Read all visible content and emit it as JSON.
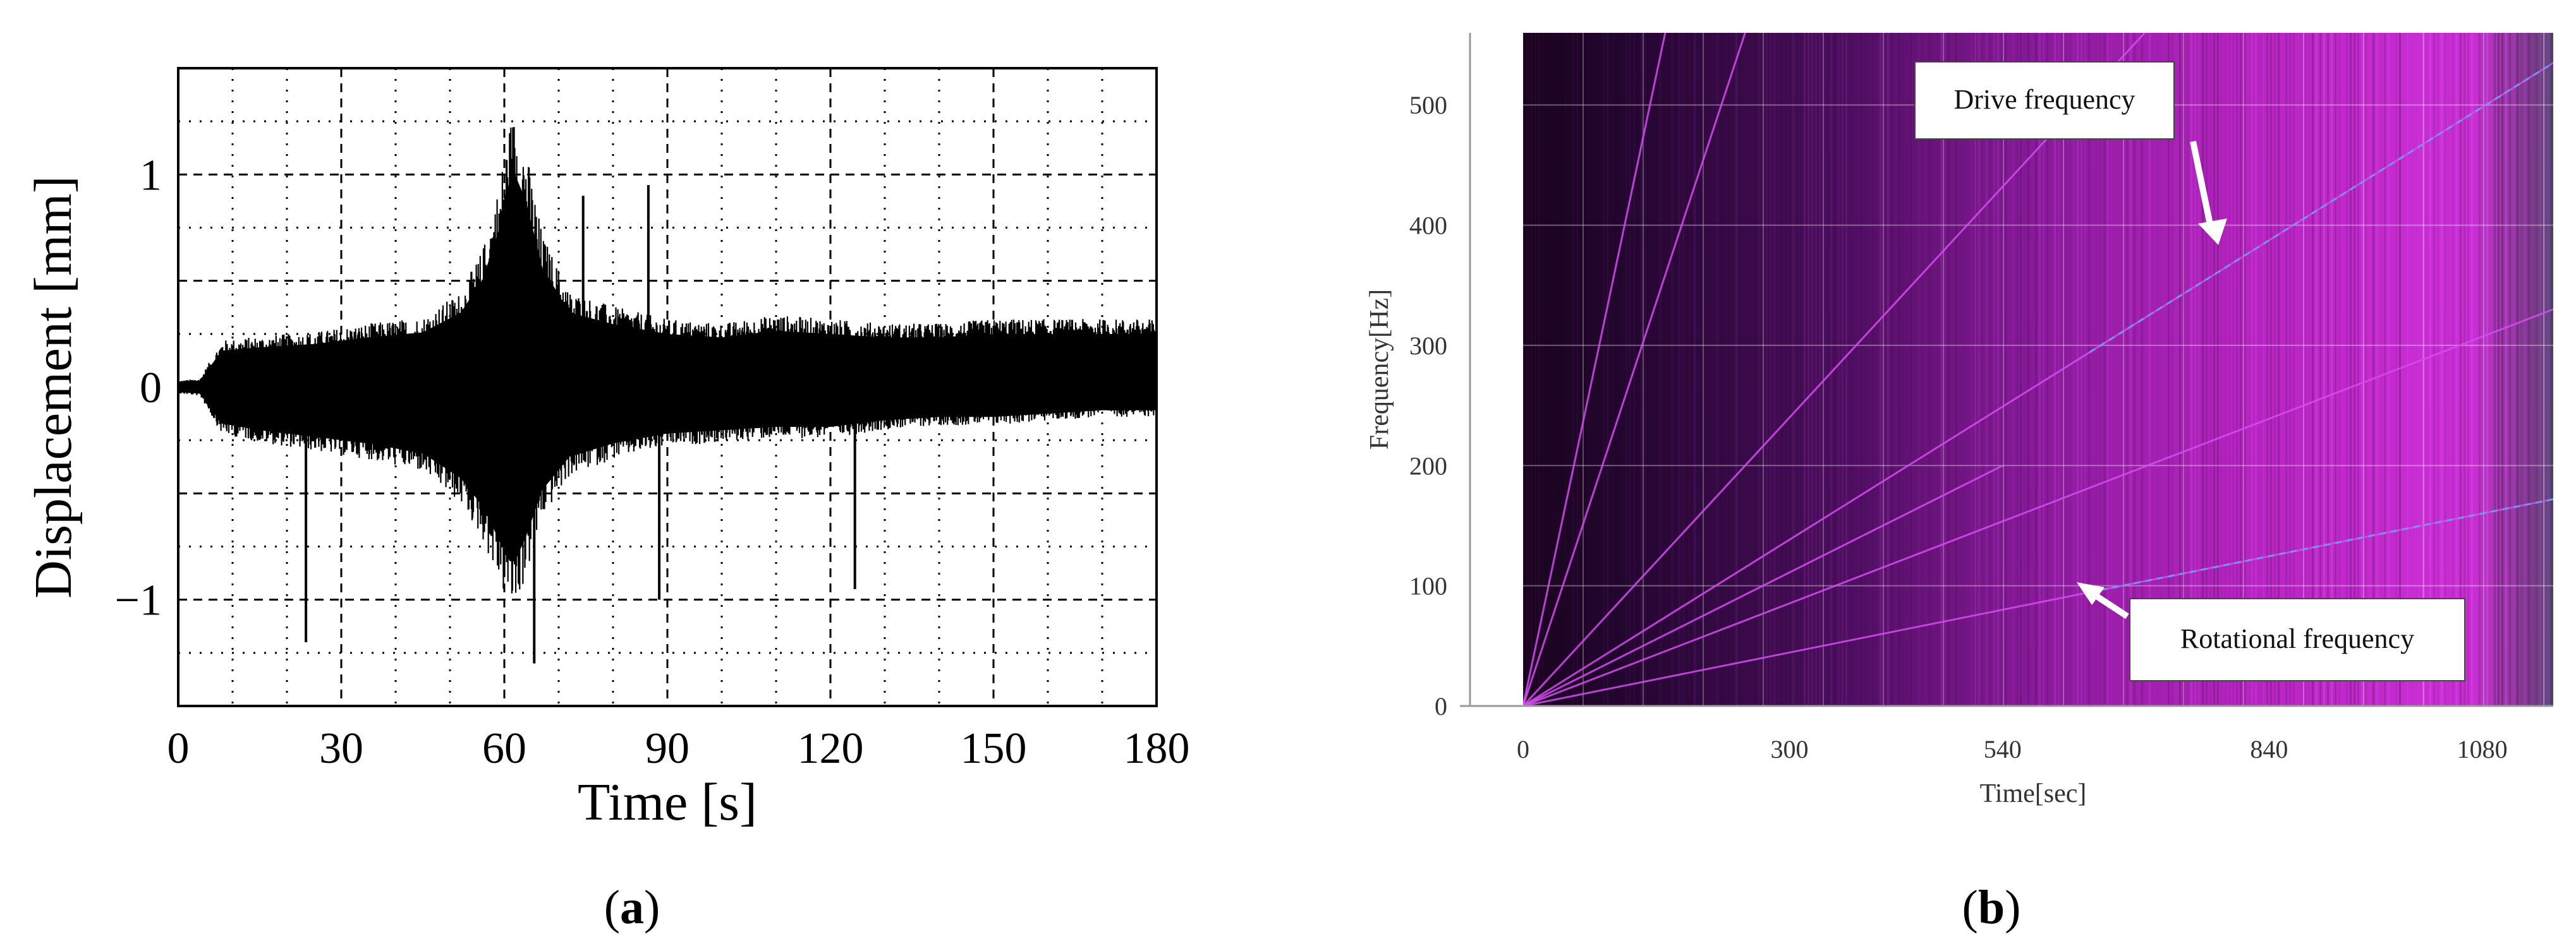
{
  "panels": {
    "a": {
      "caption_letter": "a"
    },
    "b": {
      "caption_letter": "b"
    }
  },
  "chart_data": [
    {
      "type": "line",
      "panel": "a",
      "title": "",
      "xlabel": "Time [s]",
      "ylabel": "Displacement [mm]",
      "xlim": [
        0,
        180
      ],
      "ylim": [
        -1.5,
        1.5
      ],
      "xticks": [
        0,
        30,
        60,
        90,
        120,
        150,
        180
      ],
      "yticks": [
        -1,
        0,
        1
      ],
      "ytick_labels": [
        "−1",
        "0",
        "1"
      ],
      "grid": "dotted minor, dashed major",
      "series_color": "#000000",
      "envelope": {
        "x": [
          0,
          4,
          8,
          15,
          25,
          35,
          45,
          52,
          56,
          59,
          61,
          62,
          64,
          67,
          72,
          80,
          90,
          100,
          110,
          120,
          130,
          140,
          150,
          160,
          170,
          180
        ],
        "upper": [
          0.03,
          0.04,
          0.22,
          0.24,
          0.26,
          0.3,
          0.33,
          0.45,
          0.65,
          0.95,
          1.25,
          1.28,
          1.12,
          0.72,
          0.45,
          0.38,
          0.32,
          0.3,
          0.34,
          0.32,
          0.3,
          0.3,
          0.32,
          0.32,
          0.32,
          0.32
        ],
        "lower": [
          -0.03,
          -0.04,
          -0.22,
          -0.26,
          -0.3,
          -0.34,
          -0.4,
          -0.55,
          -0.72,
          -0.92,
          -1.05,
          -1.05,
          -0.9,
          -0.62,
          -0.42,
          -0.34,
          -0.28,
          -0.26,
          -0.24,
          -0.24,
          -0.2,
          -0.18,
          -0.18,
          -0.16,
          -0.14,
          -0.14
        ]
      },
      "spikes": [
        {
          "x": 23.5,
          "y": -1.2
        },
        {
          "x": 74.5,
          "y": 0.9
        },
        {
          "x": 86.5,
          "y": 0.95
        },
        {
          "x": 88.5,
          "y": -1.0
        },
        {
          "x": 124.5,
          "y": -0.95
        },
        {
          "x": 65.5,
          "y": -1.3
        }
      ]
    },
    {
      "type": "heatmap",
      "panel": "b",
      "title": "",
      "xlabel": "Time[sec]",
      "ylabel": "Frequency[Hz]",
      "xlim": [
        0,
        1160
      ],
      "ylim": [
        0,
        560
      ],
      "xticks": [
        0,
        300,
        540,
        840,
        1080
      ],
      "yticks": [
        0,
        100,
        200,
        300,
        400,
        500
      ],
      "colormap": [
        "#1a0422",
        "#4a0a5a",
        "#8a1a9a",
        "#c020c8",
        "#e040e8"
      ],
      "line_color": "#d44cf0",
      "lines": [
        {
          "name": "Drive frequency",
          "x": [
            0,
            1160
          ],
          "y": [
            0,
            535
          ],
          "color": "#6aa0e8"
        },
        {
          "name": "Rotational frequency",
          "x": [
            0,
            1160
          ],
          "y": [
            0,
            172
          ],
          "color": "#6aa0e8"
        },
        {
          "x": [
            0,
            700
          ],
          "y": [
            0,
            560
          ]
        },
        {
          "x": [
            0,
            540
          ],
          "y": [
            0,
            200
          ]
        },
        {
          "x": [
            0,
            1160
          ],
          "y": [
            0,
            330
          ]
        },
        {
          "x": [
            0,
            250
          ],
          "y": [
            0,
            560
          ]
        },
        {
          "x": [
            0,
            160
          ],
          "y": [
            0,
            560
          ]
        }
      ],
      "annotations": [
        {
          "text": "Drive frequency",
          "arrow_to": {
            "x": 840,
            "y": 380
          }
        },
        {
          "text": "Rotational frequency",
          "arrow_to": {
            "x": 680,
            "y": 100
          }
        }
      ]
    }
  ]
}
